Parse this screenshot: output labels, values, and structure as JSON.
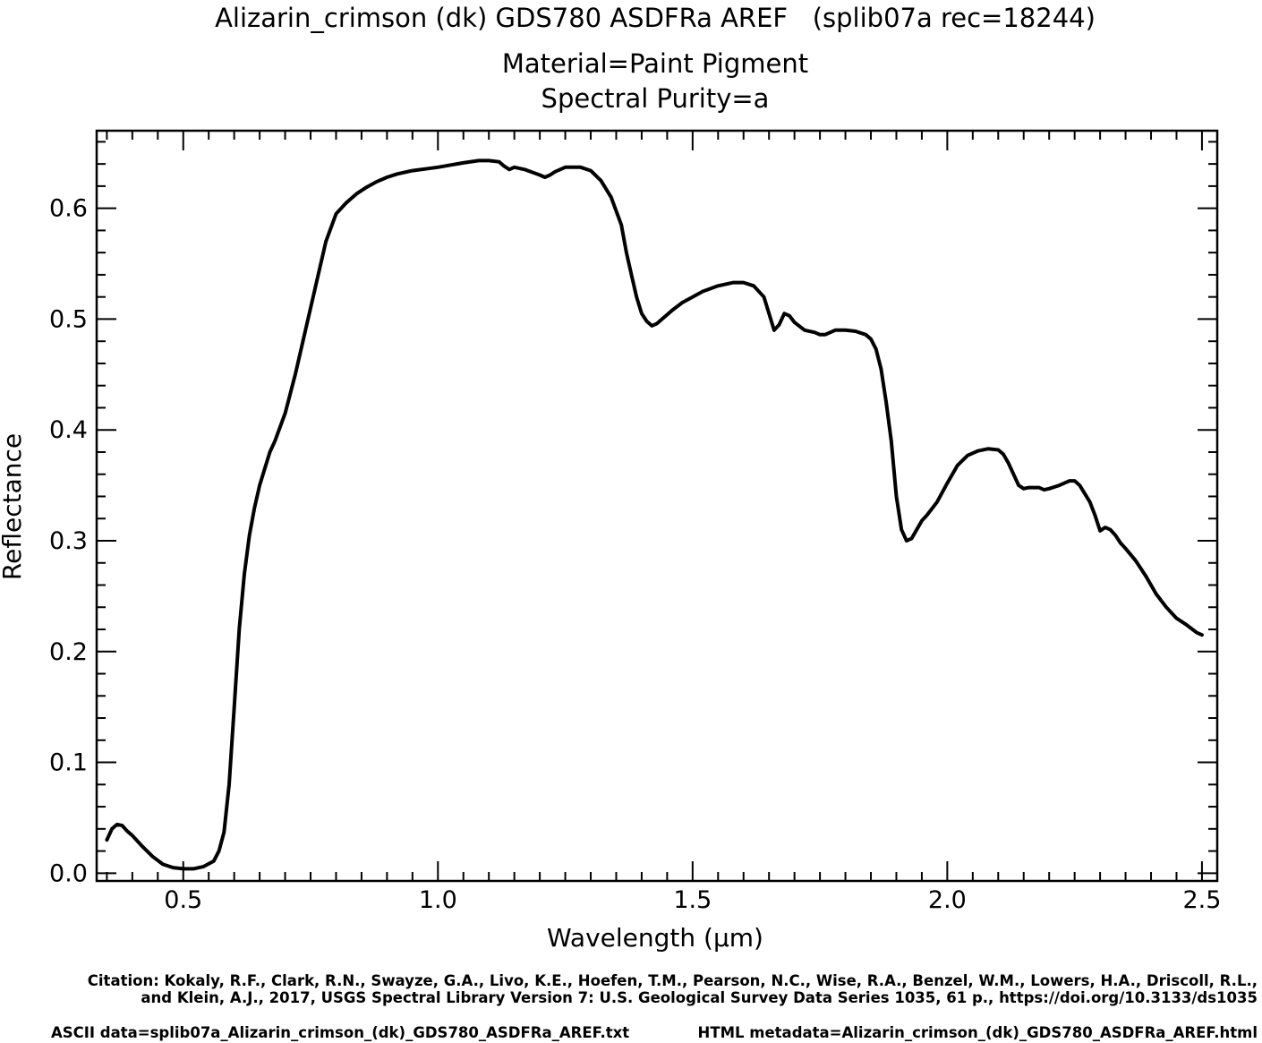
{
  "header": {
    "title": "Alizarin_crimson (dk) GDS780 ASDFRa AREF   (splib07a rec=18244)",
    "material": "Material=Paint Pigment",
    "purity": "Spectral Purity=a"
  },
  "footer": {
    "citation_line1": "Citation: Kokaly, R.F., Clark, R.N., Swayze, G.A., Livo, K.E., Hoefen, T.M., Pearson, N.C., Wise, R.A., Benzel, W.M., Lowers, H.A., Driscoll, R.L.,",
    "citation_line2": "and Klein, A.J., 2017, USGS Spectral Library Version 7: U.S. Geological Survey Data Series 1035, 61 p., https://doi.org/10.3133/ds1035",
    "ascii_data": "ASCII data=splib07a_Alizarin_crimson_(dk)_GDS780_ASDFRa_AREF.txt",
    "html_metadata": "HTML metadata=Alizarin_crimson_(dk)_GDS780_ASDFRa_AREF.html"
  },
  "chart_data": {
    "type": "line",
    "xlabel": "Wavelength (µm)",
    "ylabel": "Reflectance",
    "xlim": [
      0.33,
      2.53
    ],
    "ylim": [
      -0.007,
      0.67
    ],
    "xticks": [
      0.5,
      1.0,
      1.5,
      2.0,
      2.5
    ],
    "xtick_labels": [
      "0.5",
      "1.0",
      "1.5",
      "2.0",
      "2.5"
    ],
    "yticks": [
      0.0,
      0.1,
      0.2,
      0.3,
      0.4,
      0.5,
      0.6
    ],
    "ytick_labels": [
      "0.0",
      "0.1",
      "0.2",
      "0.3",
      "0.4",
      "0.5",
      "0.6"
    ],
    "grid": false,
    "line_color": "#000000",
    "series": [
      {
        "x": [
          0.35,
          0.36,
          0.37,
          0.38,
          0.39,
          0.4,
          0.42,
          0.44,
          0.46,
          0.48,
          0.5,
          0.52,
          0.54,
          0.56,
          0.57,
          0.58,
          0.59,
          0.6,
          0.61,
          0.62,
          0.63,
          0.64,
          0.65,
          0.66,
          0.67,
          0.68,
          0.7,
          0.72,
          0.74,
          0.76,
          0.78,
          0.8,
          0.82,
          0.84,
          0.86,
          0.88,
          0.9,
          0.92,
          0.95,
          1.0,
          1.05,
          1.08,
          1.1,
          1.12,
          1.13,
          1.14,
          1.15,
          1.17,
          1.2,
          1.21,
          1.22,
          1.23,
          1.25,
          1.28,
          1.3,
          1.32,
          1.34,
          1.36,
          1.37,
          1.38,
          1.39,
          1.4,
          1.41,
          1.42,
          1.43,
          1.44,
          1.45,
          1.46,
          1.48,
          1.5,
          1.52,
          1.55,
          1.58,
          1.6,
          1.62,
          1.64,
          1.65,
          1.66,
          1.67,
          1.68,
          1.69,
          1.7,
          1.72,
          1.74,
          1.75,
          1.76,
          1.77,
          1.78,
          1.8,
          1.82,
          1.84,
          1.85,
          1.86,
          1.87,
          1.88,
          1.89,
          1.9,
          1.91,
          1.92,
          1.93,
          1.94,
          1.95,
          1.96,
          1.98,
          2.0,
          2.02,
          2.04,
          2.06,
          2.08,
          2.1,
          2.11,
          2.12,
          2.13,
          2.14,
          2.15,
          2.16,
          2.18,
          2.19,
          2.2,
          2.22,
          2.24,
          2.25,
          2.26,
          2.28,
          2.29,
          2.3,
          2.31,
          2.32,
          2.33,
          2.34,
          2.35,
          2.37,
          2.39,
          2.41,
          2.43,
          2.45,
          2.47,
          2.49,
          2.5
        ],
        "y": [
          0.03,
          0.04,
          0.044,
          0.043,
          0.038,
          0.034,
          0.024,
          0.015,
          0.008,
          0.005,
          0.004,
          0.004,
          0.006,
          0.011,
          0.02,
          0.037,
          0.08,
          0.15,
          0.22,
          0.27,
          0.305,
          0.33,
          0.35,
          0.365,
          0.38,
          0.39,
          0.415,
          0.45,
          0.49,
          0.53,
          0.57,
          0.595,
          0.605,
          0.613,
          0.619,
          0.624,
          0.628,
          0.631,
          0.634,
          0.637,
          0.641,
          0.643,
          0.643,
          0.642,
          0.638,
          0.635,
          0.637,
          0.635,
          0.63,
          0.628,
          0.63,
          0.633,
          0.637,
          0.637,
          0.634,
          0.625,
          0.61,
          0.585,
          0.56,
          0.54,
          0.52,
          0.505,
          0.498,
          0.494,
          0.496,
          0.5,
          0.504,
          0.508,
          0.515,
          0.52,
          0.525,
          0.53,
          0.533,
          0.533,
          0.53,
          0.52,
          0.505,
          0.49,
          0.495,
          0.505,
          0.503,
          0.497,
          0.49,
          0.488,
          0.486,
          0.486,
          0.488,
          0.49,
          0.49,
          0.489,
          0.486,
          0.482,
          0.473,
          0.455,
          0.425,
          0.39,
          0.34,
          0.31,
          0.3,
          0.302,
          0.31,
          0.318,
          0.323,
          0.335,
          0.352,
          0.368,
          0.377,
          0.381,
          0.383,
          0.382,
          0.378,
          0.37,
          0.36,
          0.35,
          0.347,
          0.348,
          0.348,
          0.346,
          0.347,
          0.35,
          0.354,
          0.354,
          0.35,
          0.335,
          0.323,
          0.309,
          0.312,
          0.31,
          0.305,
          0.298,
          0.293,
          0.282,
          0.268,
          0.252,
          0.24,
          0.23,
          0.224,
          0.217,
          0.215
        ]
      }
    ]
  }
}
